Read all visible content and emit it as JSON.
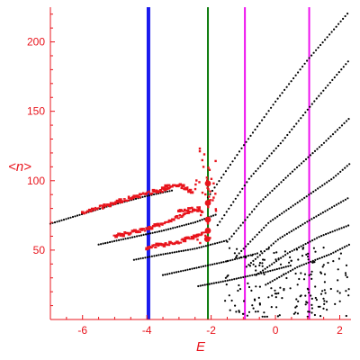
{
  "chart_data": {
    "type": "scatter",
    "title": "",
    "xlabel": "E",
    "ylabel": "<n>",
    "xlim": [
      -7.0,
      2.35
    ],
    "ylim": [
      0,
      225
    ],
    "x_ticks": [
      -6,
      -4,
      -2,
      0,
      2
    ],
    "y_ticks": [
      50,
      100,
      150,
      200
    ],
    "grid": false,
    "colors": {
      "axis": "#e8141c",
      "black_points": "#000000",
      "red_points": "#e8141c",
      "line_blue": "#1a1aee",
      "line_green": "#0a7a0a",
      "line_magenta": "#ee11ee"
    },
    "vertical_lines": [
      {
        "x": -3.95,
        "color": "#1a1aee",
        "width": "thick"
      },
      {
        "x": -2.1,
        "color": "#0a7a0a",
        "width": "thin"
      },
      {
        "x": -0.95,
        "color": "#ee11ee",
        "width": "thin"
      },
      {
        "x": 1.05,
        "color": "#ee11ee",
        "width": "thin"
      }
    ],
    "black_bands": [
      {
        "x": [
          -7.0,
          -6.0,
          -5.0,
          -4.0,
          -3.2
        ],
        "y": [
          69,
          76,
          83,
          89,
          93
        ]
      },
      {
        "x": [
          -5.5,
          -4.5,
          -3.5,
          -2.5,
          -1.8
        ],
        "y": [
          54,
          59,
          64,
          70,
          76
        ]
      },
      {
        "x": [
          -4.4,
          -3.5,
          -2.5,
          -1.5
        ],
        "y": [
          43,
          47,
          51,
          57
        ]
      },
      {
        "x": [
          -3.5,
          -2.5,
          -1.5,
          -0.5
        ],
        "y": [
          32,
          37,
          42,
          48
        ]
      },
      {
        "x": [
          -2.4,
          -1.5,
          -0.5,
          0.5
        ],
        "y": [
          24,
          28,
          33,
          39
        ]
      },
      {
        "x": [
          -2.1,
          -1.0,
          0.0,
          1.0,
          2.3
        ],
        "y": [
          88,
          125,
          157,
          187,
          222
        ]
      },
      {
        "x": [
          -1.8,
          -0.8,
          0.2,
          1.2,
          2.3
        ],
        "y": [
          68,
          102,
          128,
          157,
          187
        ]
      },
      {
        "x": [
          -1.5,
          -0.5,
          0.5,
          1.5,
          2.3
        ],
        "y": [
          56,
          84,
          106,
          127,
          145
        ]
      },
      {
        "x": [
          -1.2,
          -0.2,
          0.8,
          1.8,
          2.3
        ],
        "y": [
          46,
          70,
          86,
          102,
          112
        ]
      },
      {
        "x": [
          -0.9,
          0.1,
          1.1,
          2.3
        ],
        "y": [
          38,
          58,
          72,
          88
        ]
      },
      {
        "x": [
          -0.6,
          0.4,
          1.4,
          2.3
        ],
        "y": [
          32,
          48,
          60,
          68
        ]
      },
      {
        "x": [
          -0.3,
          0.7,
          1.7,
          2.3
        ],
        "y": [
          25,
          38,
          47,
          54
        ]
      }
    ],
    "black_scatter": {
      "x_range": [
        -1.6,
        2.3
      ],
      "y_range": [
        2,
        52
      ],
      "count": 180
    },
    "red_bands": [
      {
        "x": [
          -6.0,
          -5.0,
          -4.0,
          -3.3
        ],
        "y": [
          77,
          84,
          91,
          94
        ]
      },
      {
        "x": [
          -3.5,
          -3.0,
          -2.6
        ],
        "y": [
          95,
          97,
          92
        ]
      },
      {
        "x": [
          -5.0,
          -4.0,
          -3.2,
          -2.6
        ],
        "y": [
          60,
          65,
          72,
          78
        ]
      },
      {
        "x": [
          -3.0,
          -2.6,
          -2.25
        ],
        "y": [
          78,
          80,
          78
        ]
      },
      {
        "x": [
          -4.0,
          -3.0,
          -2.2
        ],
        "y": [
          52,
          56,
          62
        ]
      }
    ],
    "red_blobs": [
      {
        "x": -2.1,
        "y": 98
      },
      {
        "x": -2.1,
        "y": 84
      },
      {
        "x": -2.1,
        "y": 72
      },
      {
        "x": -2.1,
        "y": 64
      },
      {
        "x": -2.12,
        "y": 58
      }
    ],
    "red_scatter": {
      "x_range": [
        -2.5,
        -1.8
      ],
      "y_range": [
        55,
        125
      ],
      "count": 40
    }
  }
}
